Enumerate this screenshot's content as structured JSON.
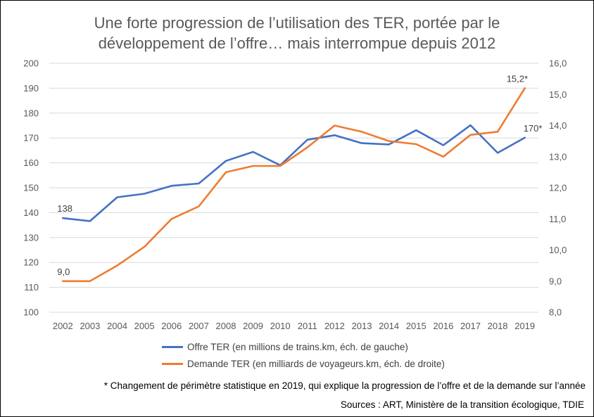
{
  "title_line1": "Une forte progression de l’utilisation des TER, portée par le",
  "title_line2": "développement de l’offre… mais interrompue depuis 2012",
  "note": "* Changement de périmètre statistique en 2019, qui explique la progression de l’offre et de la demande sur l’année",
  "source": "Sources : ART, Ministère de la transition écologique, TDIE",
  "chart_data": {
    "type": "line",
    "title": "Une forte progression de l’utilisation des TER, portée par le développement de l’offre… mais interrompue depuis 2012",
    "x": [
      "2002",
      "2003",
      "2004",
      "2005",
      "2006",
      "2007",
      "2008",
      "2009",
      "2010",
      "2011",
      "2012",
      "2013",
      "2014",
      "2015",
      "2016",
      "2017",
      "2018",
      "2019"
    ],
    "y_left": {
      "range": [
        100,
        200
      ],
      "ticks": [
        "100",
        "110",
        "120",
        "130",
        "140",
        "150",
        "160",
        "170",
        "180",
        "190",
        "200"
      ]
    },
    "y_right": {
      "range": [
        8,
        16
      ],
      "ticks": [
        "8,0",
        "9,0",
        "10,0",
        "11,0",
        "12,0",
        "13,0",
        "14,0",
        "15,0",
        "16,0"
      ]
    },
    "grid": true,
    "legend_position": "bottom",
    "series": [
      {
        "name": "Offre TER (en millions de trains.km, éch. de gauche)",
        "axis": "left",
        "color": "#4472C4",
        "values": [
          137.8,
          136.6,
          146.2,
          147.6,
          150.8,
          151.7,
          160.8,
          164.4,
          159.0,
          169.3,
          171.1,
          167.9,
          167.4,
          173.1,
          167.1,
          175.1,
          164.0,
          170.1
        ]
      },
      {
        "name": "Demande TER (en milliards de voyageurs.km, éch. de droite)",
        "axis": "right",
        "color": "#ED7D31",
        "values": [
          9.0,
          9.0,
          9.5,
          10.1,
          11.0,
          11.4,
          12.5,
          12.7,
          12.7,
          13.3,
          14.0,
          13.8,
          13.5,
          13.4,
          13.0,
          13.7,
          13.8,
          15.2
        ]
      }
    ],
    "annotations": [
      {
        "series": 0,
        "index": 0,
        "text": "138"
      },
      {
        "series": 1,
        "index": 0,
        "text": "9,0"
      },
      {
        "series": 0,
        "index": 17,
        "text": "170*"
      },
      {
        "series": 1,
        "index": 17,
        "text": "15,2*"
      }
    ]
  }
}
